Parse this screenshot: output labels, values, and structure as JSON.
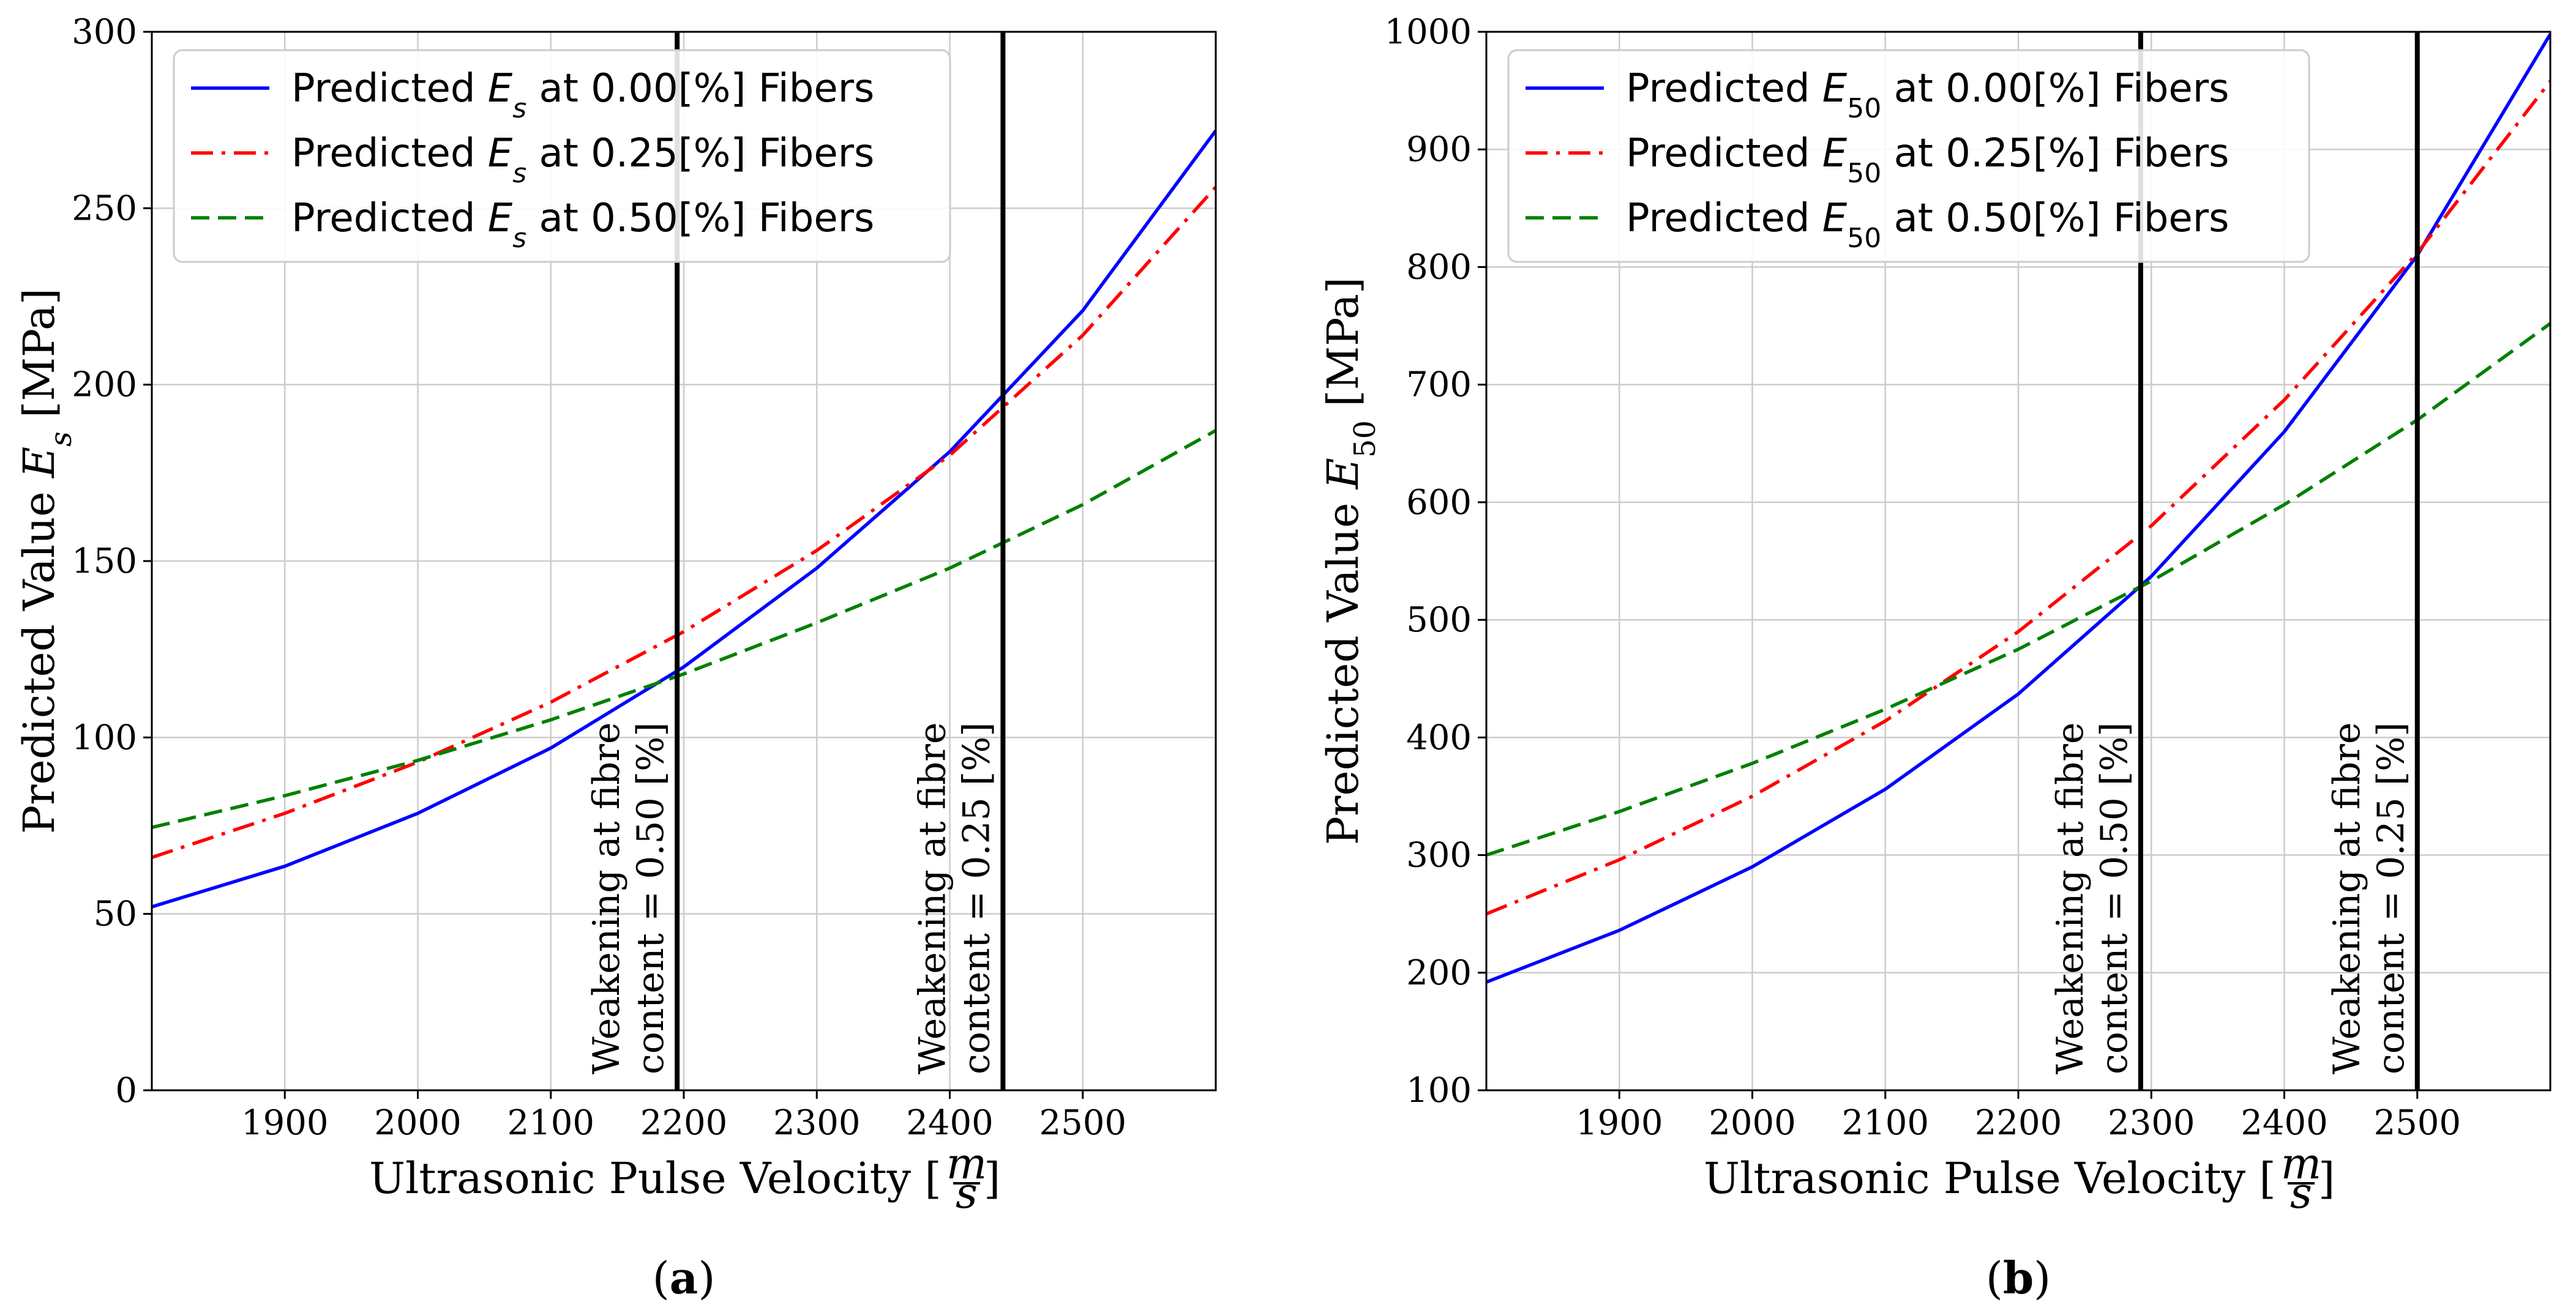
{
  "chart_data": [
    {
      "type": "line",
      "panel_label": "(a)",
      "xlabel": "Ultrasonic Pulse Velocity [m/s]",
      "ylabel": "Predicted Value   E_s [MPa]",
      "xlim": [
        1800,
        2600
      ],
      "ylim": [
        0,
        300
      ],
      "xticks": [
        1900,
        2000,
        2100,
        2200,
        2300,
        2400,
        2500
      ],
      "yticks": [
        0,
        50,
        100,
        150,
        200,
        250,
        300
      ],
      "grid": true,
      "legend_position": "top-left",
      "series": [
        {
          "name": "Predicted  E_s at 0.00[%] Fibers",
          "color": "#0000ff",
          "style": "solid",
          "x": [
            1800,
            1900,
            2000,
            2100,
            2200,
            2300,
            2400,
            2500,
            2600
          ],
          "y": [
            52,
            63.5,
            78.5,
            97,
            120,
            148,
            181,
            221,
            272
          ]
        },
        {
          "name": "Predicted  E_s at 0.25[%] Fibers",
          "color": "#ff0000",
          "style": "dashdot",
          "x": [
            1800,
            1900,
            2000,
            2100,
            2200,
            2300,
            2400,
            2500,
            2600
          ],
          "y": [
            66,
            78.5,
            93,
            110,
            130,
            153,
            180,
            214,
            256
          ]
        },
        {
          "name": "Predicted  E_s at 0.50[%] Fibers",
          "color": "#008000",
          "style": "dashed",
          "x": [
            1800,
            1900,
            2000,
            2100,
            2200,
            2300,
            2400,
            2500,
            2600
          ],
          "y": [
            74.5,
            83.5,
            93.5,
            105,
            118,
            132.5,
            148,
            166,
            187
          ]
        }
      ],
      "vlines": [
        {
          "x": 2195,
          "label_line1": "Weakening at fibre",
          "label_line2": "content = 0.50 [%]"
        },
        {
          "x": 2440,
          "label_line1": "Weakening at fibre",
          "label_line2": "content = 0.25 [%]"
        }
      ]
    },
    {
      "type": "line",
      "panel_label": "(b)",
      "xlabel": "Ultrasonic Pulse Velocity [m/s]",
      "ylabel": "Predicted Value   E_50 [MPa]",
      "xlim": [
        1800,
        2600
      ],
      "ylim": [
        100,
        1000
      ],
      "xticks": [
        1900,
        2000,
        2100,
        2200,
        2300,
        2400,
        2500
      ],
      "yticks": [
        100,
        200,
        300,
        400,
        500,
        600,
        700,
        800,
        900,
        1000
      ],
      "grid": true,
      "legend_position": "top-left",
      "series": [
        {
          "name": "Predicted  E_50 at 0.00[%] Fibers",
          "color": "#0000ff",
          "style": "solid",
          "x": [
            1800,
            1900,
            2000,
            2100,
            2200,
            2300,
            2400,
            2500,
            2600
          ],
          "y": [
            192,
            236,
            290,
            356,
            437,
            537,
            660,
            810,
            998
          ]
        },
        {
          "name": "Predicted  E_50 at 0.25[%] Fibers",
          "color": "#ff0000",
          "style": "dashdot",
          "x": [
            1800,
            1900,
            2000,
            2100,
            2200,
            2300,
            2400,
            2500,
            2600
          ],
          "y": [
            250,
            296,
            350,
            414,
            490,
            580,
            687,
            812,
            958
          ]
        },
        {
          "name": "Predicted  E_50 at 0.50[%] Fibers",
          "color": "#008000",
          "style": "dashed",
          "x": [
            1800,
            1900,
            2000,
            2100,
            2200,
            2300,
            2400,
            2500,
            2600
          ],
          "y": [
            300,
            337,
            378,
            424,
            475,
            533,
            598,
            670,
            752
          ]
        }
      ],
      "vlines": [
        {
          "x": 2292,
          "label_line1": "Weakening at fibre",
          "label_line2": "content = 0.50 [%]"
        },
        {
          "x": 2500,
          "label_line1": "Weakening at fibre",
          "label_line2": "content = 0.25 [%]"
        }
      ]
    }
  ]
}
